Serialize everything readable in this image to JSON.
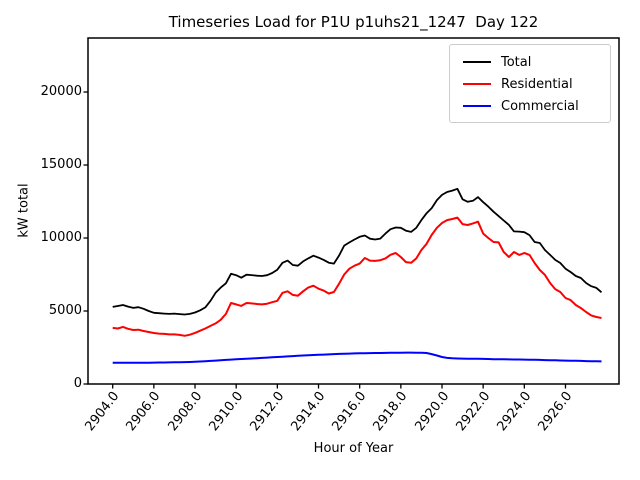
{
  "chart_data": {
    "type": "line",
    "title": "Timeseries Load for P1U p1uhs21_1247  Day 122",
    "xlabel": "Hour of Year",
    "ylabel": "kW total",
    "x_tick_labels": [
      "2904.0",
      "2906.0",
      "2908.0",
      "2910.0",
      "2912.0",
      "2914.0",
      "2916.0",
      "2918.0",
      "2920.0",
      "2922.0",
      "2924.0",
      "2926.0"
    ],
    "y_tick_labels": [
      "0",
      "5000",
      "10000",
      "15000",
      "20000"
    ],
    "xlim": [
      2902.8,
      2928.6
    ],
    "ylim": [
      0,
      23700
    ],
    "grid": false,
    "legend_position": "upper right",
    "x_start": 2904.0,
    "x_step": 0.25,
    "n_points": 96,
    "series": [
      {
        "name": "Total",
        "color": "#000000",
        "values": [
          5280,
          5340,
          5410,
          5300,
          5210,
          5260,
          5150,
          5000,
          4880,
          4850,
          4820,
          4800,
          4820,
          4790,
          4760,
          4800,
          4900,
          5050,
          5250,
          5700,
          6250,
          6600,
          6900,
          7550,
          7450,
          7280,
          7490,
          7460,
          7420,
          7400,
          7450,
          7600,
          7830,
          8300,
          8450,
          8150,
          8100,
          8400,
          8600,
          8790,
          8660,
          8500,
          8310,
          8250,
          8800,
          9480,
          9700,
          9900,
          10080,
          10170,
          9950,
          9900,
          9960,
          10300,
          10600,
          10720,
          10700,
          10500,
          10420,
          10700,
          11230,
          11700,
          12050,
          12600,
          12950,
          13150,
          13250,
          13370,
          12650,
          12480,
          12550,
          12800,
          12450,
          12150,
          11800,
          11500,
          11200,
          10900,
          10450,
          10440,
          10400,
          10200,
          9730,
          9660,
          9180,
          8840,
          8500,
          8290,
          7900,
          7670,
          7400,
          7260,
          6920,
          6700,
          6580,
          6280
        ]
      },
      {
        "name": "Residential",
        "color": "#ff0000",
        "values": [
          3840,
          3800,
          3910,
          3780,
          3700,
          3720,
          3630,
          3560,
          3490,
          3450,
          3430,
          3400,
          3400,
          3360,
          3300,
          3380,
          3500,
          3650,
          3800,
          3980,
          4150,
          4400,
          4800,
          5550,
          5450,
          5350,
          5550,
          5520,
          5480,
          5450,
          5500,
          5600,
          5700,
          6250,
          6350,
          6100,
          6050,
          6350,
          6600,
          6730,
          6530,
          6400,
          6200,
          6300,
          6870,
          7500,
          7900,
          8100,
          8250,
          8630,
          8450,
          8430,
          8480,
          8600,
          8850,
          8970,
          8700,
          8350,
          8300,
          8600,
          9180,
          9600,
          10210,
          10700,
          11030,
          11230,
          11300,
          11400,
          10950,
          10890,
          11000,
          11120,
          10300,
          10000,
          9730,
          9700,
          9040,
          8700,
          9040,
          8840,
          8970,
          8840,
          8290,
          7810,
          7470,
          6920,
          6500,
          6300,
          5890,
          5750,
          5410,
          5200,
          4930,
          4700,
          4590,
          4520
        ]
      },
      {
        "name": "Commercial",
        "color": "#0000ff",
        "values": [
          1450,
          1450,
          1450,
          1450,
          1450,
          1455,
          1460,
          1460,
          1465,
          1470,
          1475,
          1480,
          1485,
          1490,
          1500,
          1510,
          1520,
          1540,
          1560,
          1580,
          1600,
          1620,
          1650,
          1670,
          1690,
          1710,
          1730,
          1750,
          1770,
          1790,
          1810,
          1830,
          1850,
          1870,
          1890,
          1910,
          1930,
          1950,
          1970,
          1985,
          2000,
          2015,
          2030,
          2045,
          2060,
          2075,
          2085,
          2095,
          2100,
          2110,
          2115,
          2120,
          2125,
          2130,
          2135,
          2140,
          2145,
          2150,
          2150,
          2145,
          2140,
          2120,
          2050,
          1950,
          1850,
          1790,
          1760,
          1750,
          1740,
          1735,
          1730,
          1725,
          1720,
          1710,
          1700,
          1695,
          1690,
          1685,
          1680,
          1675,
          1670,
          1665,
          1660,
          1650,
          1640,
          1630,
          1620,
          1610,
          1600,
          1595,
          1590,
          1580,
          1570,
          1565,
          1560,
          1550
        ]
      }
    ]
  }
}
